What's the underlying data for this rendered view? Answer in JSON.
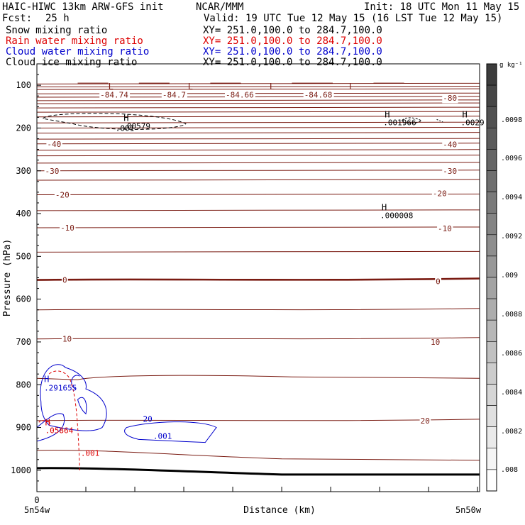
{
  "header": {
    "model": "HAIC-HIWC 13km ARW-GFS init",
    "org": "NCAR/MMM",
    "init": "Init: 18 UTC Mon 11 May 15",
    "fcst_label": "Fcst:",
    "fcst_value": "25 h",
    "valid": "Valid: 19 UTC Tue 12 May 15 (16 LST Tue 12 May 15)"
  },
  "fields": [
    {
      "name": "Snow mixing ratio",
      "xy": "XY= 251.0,100.0 to 284.7,100.0",
      "color": "#000000"
    },
    {
      "name": "Rain water mixing ratio",
      "xy": "XY= 251.0,100.0 to 284.7,100.0",
      "color": "#dd0000"
    },
    {
      "name": "Cloud water mixing ratio",
      "xy": "XY= 251.0,100.0 to 284.7,100.0",
      "color": "#0000cc"
    },
    {
      "name": "Cloud ice mixing ratio",
      "xy": "XY= 251.0,100.0 to 284.7,100.0",
      "color": "#000000"
    }
  ],
  "chart_data": {
    "type": "contour",
    "ylabel": "Pressure (hPa)",
    "xlabel": "Distance (km)",
    "ylim": [
      1050,
      50
    ],
    "xlim": [
      0,
      434
    ],
    "y_ticks": [
      100,
      200,
      300,
      400,
      500,
      600,
      700,
      800,
      900,
      1000
    ],
    "x_ticks": [
      0,
      48,
      96,
      144,
      192,
      240,
      288,
      336,
      384,
      432
    ],
    "x_tick_labels": [
      "0"
    ],
    "x_endpoint_labels": [
      "5n54w",
      "5n50w"
    ],
    "temperature_labels": [
      {
        "text": "-84.74",
        "x": 62,
        "p": 122
      },
      {
        "text": "-84.7",
        "x": 123,
        "p": 122
      },
      {
        "text": "-84.66",
        "x": 185,
        "p": 122
      },
      {
        "text": "-84.68",
        "x": 262,
        "p": 122
      },
      {
        "text": "-80",
        "x": 398,
        "p": 130
      },
      {
        "text": "-40",
        "x": 10,
        "p": 237
      },
      {
        "text": "-40",
        "x": 398,
        "p": 238
      },
      {
        "text": "-30",
        "x": 8,
        "p": 300
      },
      {
        "text": "-30",
        "x": 398,
        "p": 300
      },
      {
        "text": "-20",
        "x": 18,
        "p": 356
      },
      {
        "text": "-20",
        "x": 388,
        "p": 353
      },
      {
        "text": "-10",
        "x": 23,
        "p": 433
      },
      {
        "text": "-10",
        "x": 393,
        "p": 435
      },
      {
        "text": "0",
        "x": 25,
        "p": 555
      },
      {
        "text": "0",
        "x": 391,
        "p": 558
      },
      {
        "text": "10",
        "x": 25,
        "p": 693
      },
      {
        "text": "10",
        "x": 386,
        "p": 700
      },
      {
        "text": "20",
        "x": 376,
        "p": 884
      }
    ],
    "low_markers": [
      {
        "text": "L",
        "x": 70,
        "p": 93
      },
      {
        "text": "L",
        "x": 148,
        "p": 93
      },
      {
        "text": "L",
        "x": 228,
        "p": 93
      },
      {
        "text": "L",
        "x": 306,
        "p": 93
      }
    ],
    "snow_maxima": [
      {
        "text": "H",
        "x": 85,
        "p": 190,
        "value": ".00579"
      },
      {
        "text": "H",
        "x": 341,
        "p": 182,
        "value": ".001966"
      },
      {
        "text": "H",
        "x": 417,
        "p": 182,
        "value": ".0029"
      },
      {
        "text": "H",
        "x": 338,
        "p": 399,
        "value": ".000008"
      }
    ],
    "snow_contour_labels": [
      ".001"
    ],
    "cloud_water_maxima": [
      {
        "text": "H",
        "x": 7,
        "p": 797,
        "value": ".291655"
      }
    ],
    "cloud_water_labels": [
      {
        "text": "20",
        "x": 104,
        "p": 880
      },
      {
        "text": ".001",
        "x": 114,
        "p": 920
      }
    ],
    "rain_water_maxima": [
      {
        "text": "H",
        "x": 8,
        "p": 895,
        "value": ".05864"
      }
    ],
    "rain_water_labels": [
      {
        "text": ".001",
        "x": 43,
        "p": 960
      }
    ],
    "colorbar": {
      "unit": "g kg⁻¹",
      "ticks": [
        ".0098",
        ".0096",
        ".0094",
        ".0092",
        ".009",
        ".0088",
        ".0086",
        ".0084",
        ".0082",
        ".008"
      ]
    },
    "colors": {
      "temperature": "#7a1b12",
      "snow": "#000000",
      "rain": "#dd0000",
      "cloud_water": "#0000cc",
      "surface": "#000000"
    }
  }
}
